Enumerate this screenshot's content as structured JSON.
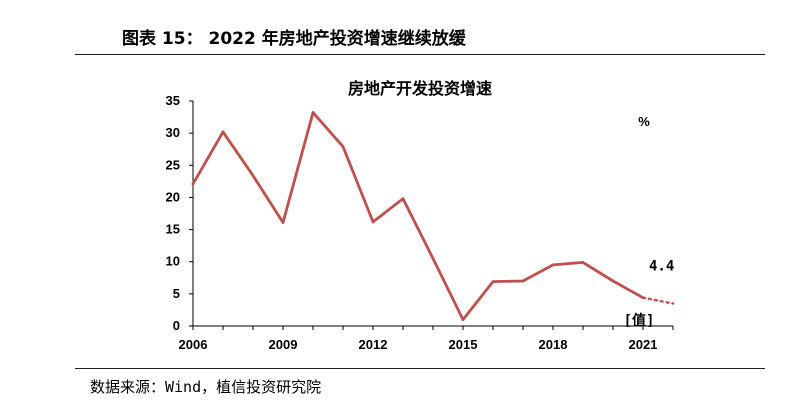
{
  "header": {
    "figure_title": "图表 15： 2022 年房地产投资增速继续放缓"
  },
  "source": {
    "text": "数据来源：Wind，植信投资研究院"
  },
  "chart_data": {
    "type": "line",
    "title": "房地产开发投资增速",
    "unit": "%",
    "xlabel": "",
    "ylabel": "",
    "ylim": [
      0,
      35
    ],
    "yticks": [
      "0",
      "5",
      "10",
      "15",
      "20",
      "25",
      "30",
      "35"
    ],
    "xlim": [
      2006,
      2022
    ],
    "xticks": [
      "2006",
      "2009",
      "2012",
      "2015",
      "2018",
      "2021"
    ],
    "grid": false,
    "legend": "none",
    "line_color": "#C0504D",
    "series": [
      {
        "x": [
          2006,
          2007,
          2008,
          2009,
          2010,
          2011,
          2012,
          2013,
          2014,
          2015,
          2016,
          2017,
          2018,
          2019,
          2020,
          2021
        ],
        "values": [
          22.1,
          30.2,
          23.4,
          16.1,
          33.2,
          27.9,
          16.2,
          19.8,
          10.5,
          1.0,
          6.9,
          7.0,
          9.5,
          9.9,
          7.0,
          4.4
        ],
        "style": "solid"
      },
      {
        "x": [
          2021,
          2022
        ],
        "values": [
          4.4,
          3.5
        ],
        "style": "dotted"
      }
    ],
    "annotations": [
      {
        "text": "4.4",
        "x": 2021,
        "y": 4.4
      },
      {
        "text": "[值]",
        "x": 2021,
        "y": 0
      }
    ]
  }
}
